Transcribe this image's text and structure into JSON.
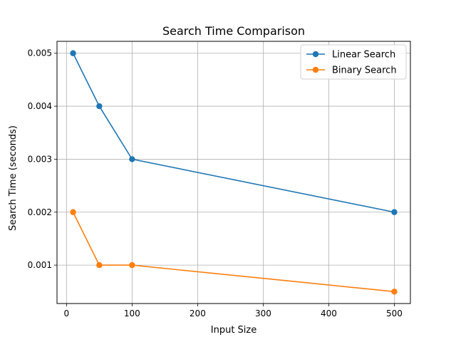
{
  "chart_data": {
    "type": "line",
    "title": "Search Time Comparison",
    "xlabel": "Input Size",
    "ylabel": "Search Time (seconds)",
    "x": [
      10,
      50,
      100,
      500
    ],
    "series": [
      {
        "name": "Linear Search",
        "values": [
          0.005,
          0.004,
          0.003,
          0.002
        ],
        "color": "#1f77b4"
      },
      {
        "name": "Binary Search",
        "values": [
          0.002,
          0.001,
          0.001,
          0.0005
        ],
        "color": "#ff7f0e"
      }
    ],
    "xlim": [
      -14.5,
      524.5
    ],
    "ylim": [
      0.000275,
      0.005225
    ],
    "xticks": [
      0,
      100,
      200,
      300,
      400,
      500
    ],
    "xtick_labels": [
      "0",
      "100",
      "200",
      "300",
      "400",
      "500"
    ],
    "yticks": [
      0.001,
      0.002,
      0.003,
      0.004,
      0.005
    ],
    "ytick_labels": [
      "0.001",
      "0.002",
      "0.003",
      "0.004",
      "0.005"
    ],
    "grid": true,
    "legend_position": "top-right"
  }
}
